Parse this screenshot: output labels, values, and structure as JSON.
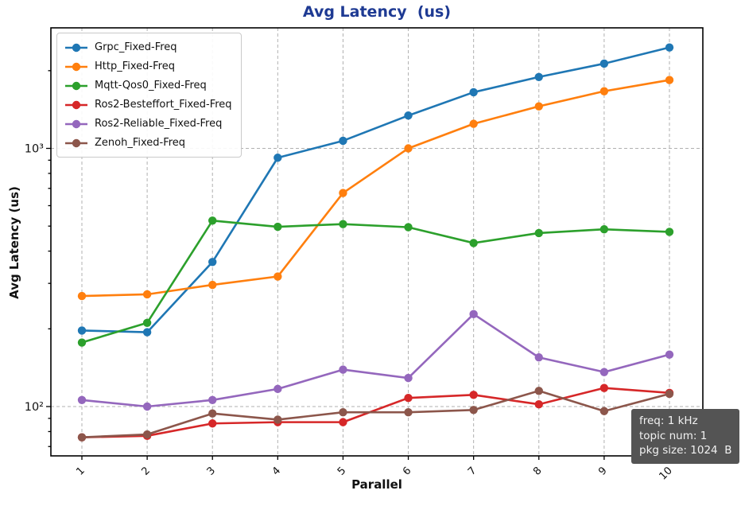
{
  "chart_data": {
    "type": "line",
    "title": "Avg Latency  (us)",
    "title_color": "#1e3a93",
    "xlabel": "Parallel",
    "ylabel": "Avg Latency (us)",
    "yscale": "log",
    "ylim": [
      65,
      2930
    ],
    "xlim": [
      0.55,
      10.5
    ],
    "grid": true,
    "legend_position": "upper left",
    "x": [
      1,
      2,
      3,
      4,
      5,
      6,
      7,
      8,
      9,
      10
    ],
    "x_tick_labels": [
      "1",
      "2",
      "3",
      "4",
      "5",
      "6",
      "7",
      "8",
      "9",
      "10"
    ],
    "y_ticks": [
      {
        "label": "10²",
        "value": 100
      },
      {
        "label": "10³",
        "value": 1000
      }
    ],
    "series": [
      {
        "name": "Grpc_Fixed-Freq",
        "color": "#1f77b4",
        "values": [
          197,
          194,
          363,
          920,
          1070,
          1340,
          1650,
          1890,
          2130,
          2460
        ]
      },
      {
        "name": "Http_Fixed-Freq",
        "color": "#ff7f0e",
        "values": [
          268,
          272,
          296,
          319,
          672,
          1000,
          1245,
          1455,
          1665,
          1840
        ]
      },
      {
        "name": "Mqtt-Qos0_Fixed-Freq",
        "color": "#2ca02c",
        "values": [
          177,
          211,
          525,
          497,
          509,
          495,
          430,
          470,
          486,
          475
        ]
      },
      {
        "name": "Ros2-Besteffort_Fixed-Freq",
        "color": "#d62728",
        "values": [
          76,
          77,
          86,
          87,
          87,
          108,
          111,
          102,
          118,
          113
        ]
      },
      {
        "name": "Ros2-Reliable_Fixed-Freq",
        "color": "#9467bd",
        "values": [
          106,
          100,
          106,
          117,
          139,
          129,
          228,
          155,
          136,
          159
        ]
      },
      {
        "name": "Zenoh_Fixed-Freq",
        "color": "#8c564b",
        "values": [
          76,
          78,
          94,
          89,
          95,
          95,
          97,
          115,
          96,
          112
        ]
      }
    ],
    "annotation": {
      "lines": [
        "freq: 1 kHz",
        "topic num: 1",
        "pkg size: 1024  B"
      ],
      "bg": "#545454",
      "text_color": "#f2f2f2"
    }
  }
}
